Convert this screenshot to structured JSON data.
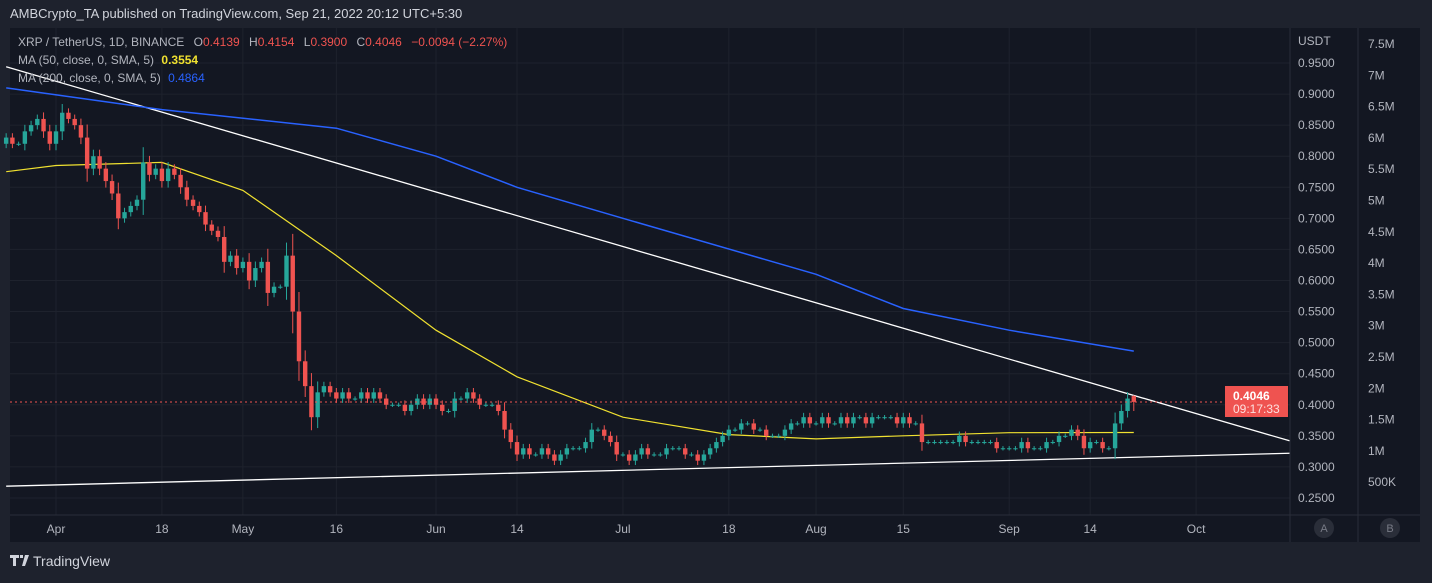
{
  "header": {
    "published": "AMBCrypto_TA published on TradingView.com, Sep 21, 2022 20:12 UTC+5:30"
  },
  "legend": {
    "symbol": "XRP / TetherUS, 1D, BINANCE",
    "o_label": "O",
    "o": "0.4139",
    "h_label": "H",
    "h": "0.4154",
    "l_label": "L",
    "l": "0.3900",
    "c_label": "C",
    "c": "0.4046",
    "change": "−0.0094 (−2.27%)",
    "ma50_label": "MA (50, close, 0, SMA, 5)",
    "ma50_value": "0.3554",
    "ma200_label": "MA (200, close, 0, SMA, 5)",
    "ma200_value": "0.4864"
  },
  "price_axis": {
    "unit": "USDT",
    "ticks": [
      "0.9500",
      "0.9000",
      "0.8500",
      "0.8000",
      "0.7500",
      "0.7000",
      "0.6500",
      "0.6000",
      "0.5500",
      "0.5000",
      "0.4500",
      "0.4000",
      "0.3500",
      "0.3000",
      "0.2500"
    ],
    "last_price": "0.4046",
    "countdown": "09:17:33"
  },
  "volume_axis": {
    "ticks": [
      "7.5M",
      "7M",
      "6.5M",
      "6M",
      "5.5M",
      "5M",
      "4.5M",
      "4M",
      "3.5M",
      "3M",
      "2.5M",
      "2M",
      "1.5M",
      "1M",
      "500K"
    ]
  },
  "time_axis": {
    "ticks": [
      {
        "label": "Apr",
        "date": "2022-04-01"
      },
      {
        "label": "18",
        "date": "2022-04-18"
      },
      {
        "label": "May",
        "date": "2022-05-01"
      },
      {
        "label": "16",
        "date": "2022-05-16"
      },
      {
        "label": "Jun",
        "date": "2022-06-01"
      },
      {
        "label": "14",
        "date": "2022-06-14"
      },
      {
        "label": "Jul",
        "date": "2022-07-01"
      },
      {
        "label": "18",
        "date": "2022-07-18"
      },
      {
        "label": "Aug",
        "date": "2022-08-01"
      },
      {
        "label": "15",
        "date": "2022-08-15"
      },
      {
        "label": "Sep",
        "date": "2022-09-01"
      },
      {
        "label": "14",
        "date": "2022-09-14"
      },
      {
        "label": "Oct",
        "date": "2022-10-01"
      }
    ]
  },
  "scale_buttons": {
    "a": "A",
    "b": "B"
  },
  "footer": {
    "brand": "TradingView"
  },
  "colors": {
    "up": "#26a69a",
    "down": "#ef5350",
    "ma50": "#f0e130",
    "ma200": "#2962ff",
    "trendline": "#ffffff",
    "background": "#131722"
  },
  "chart_data": {
    "type": "candlestick",
    "interval": "1D",
    "x_start": "2022-03-24",
    "ylim": [
      0.23,
      0.98
    ],
    "grid": true,
    "closes": [
      0.83,
      0.82,
      0.82,
      0.84,
      0.85,
      0.86,
      0.84,
      0.82,
      0.84,
      0.87,
      0.86,
      0.85,
      0.83,
      0.78,
      0.8,
      0.78,
      0.76,
      0.74,
      0.7,
      0.71,
      0.72,
      0.73,
      0.79,
      0.77,
      0.78,
      0.76,
      0.78,
      0.77,
      0.75,
      0.73,
      0.72,
      0.71,
      0.69,
      0.68,
      0.67,
      0.63,
      0.64,
      0.62,
      0.63,
      0.6,
      0.62,
      0.63,
      0.58,
      0.59,
      0.59,
      0.64,
      0.55,
      0.47,
      0.43,
      0.38,
      0.42,
      0.43,
      0.42,
      0.41,
      0.42,
      0.41,
      0.41,
      0.42,
      0.41,
      0.42,
      0.41,
      0.4,
      0.4,
      0.4,
      0.39,
      0.4,
      0.41,
      0.4,
      0.41,
      0.4,
      0.39,
      0.39,
      0.41,
      0.41,
      0.42,
      0.41,
      0.4,
      0.4,
      0.4,
      0.39,
      0.36,
      0.34,
      0.32,
      0.33,
      0.32,
      0.32,
      0.33,
      0.32,
      0.31,
      0.32,
      0.33,
      0.33,
      0.33,
      0.34,
      0.36,
      0.36,
      0.35,
      0.34,
      0.32,
      0.32,
      0.31,
      0.32,
      0.33,
      0.32,
      0.32,
      0.32,
      0.33,
      0.33,
      0.33,
      0.32,
      0.32,
      0.31,
      0.32,
      0.33,
      0.34,
      0.35,
      0.36,
      0.36,
      0.37,
      0.37,
      0.36,
      0.36,
      0.35,
      0.35,
      0.35,
      0.36,
      0.37,
      0.37,
      0.38,
      0.37,
      0.37,
      0.38,
      0.37,
      0.37,
      0.38,
      0.37,
      0.38,
      0.38,
      0.37,
      0.38,
      0.38,
      0.38,
      0.38,
      0.37,
      0.38,
      0.37,
      0.37,
      0.34,
      0.34,
      0.34,
      0.34,
      0.34,
      0.34,
      0.35,
      0.34,
      0.34,
      0.34,
      0.34,
      0.34,
      0.33,
      0.33,
      0.33,
      0.33,
      0.34,
      0.33,
      0.33,
      0.33,
      0.34,
      0.34,
      0.35,
      0.35,
      0.36,
      0.35,
      0.33,
      0.34,
      0.34,
      0.33,
      0.33,
      0.37,
      0.39,
      0.41,
      0.4046
    ],
    "last_candle": {
      "date": "2022-09-21",
      "open": 0.4139,
      "high": 0.4154,
      "low": 0.39,
      "close": 0.4046
    },
    "ma50": [
      [
        "2022-03-24",
        0.775
      ],
      [
        "2022-04-01",
        0.785
      ],
      [
        "2022-04-18",
        0.79
      ],
      [
        "2022-05-01",
        0.745
      ],
      [
        "2022-05-16",
        0.64
      ],
      [
        "2022-06-01",
        0.52
      ],
      [
        "2022-06-14",
        0.445
      ],
      [
        "2022-07-01",
        0.38
      ],
      [
        "2022-07-18",
        0.352
      ],
      [
        "2022-08-01",
        0.345
      ],
      [
        "2022-08-15",
        0.35
      ],
      [
        "2022-09-01",
        0.355
      ],
      [
        "2022-09-21",
        0.3554
      ]
    ],
    "ma200": [
      [
        "2022-03-24",
        0.91
      ],
      [
        "2022-04-18",
        0.875
      ],
      [
        "2022-05-16",
        0.845
      ],
      [
        "2022-06-01",
        0.8
      ],
      [
        "2022-06-14",
        0.75
      ],
      [
        "2022-07-01",
        0.7
      ],
      [
        "2022-08-01",
        0.61
      ],
      [
        "2022-08-15",
        0.555
      ],
      [
        "2022-09-01",
        0.52
      ],
      [
        "2022-09-21",
        0.4864
      ]
    ],
    "trendlines": [
      {
        "from": [
          "2022-03-24",
          0.944
        ],
        "to": [
          "2022-10-16",
          0.342
        ]
      },
      {
        "from": [
          "2022-03-24",
          0.269
        ],
        "to": [
          "2022-10-16",
          0.322
        ]
      }
    ]
  }
}
